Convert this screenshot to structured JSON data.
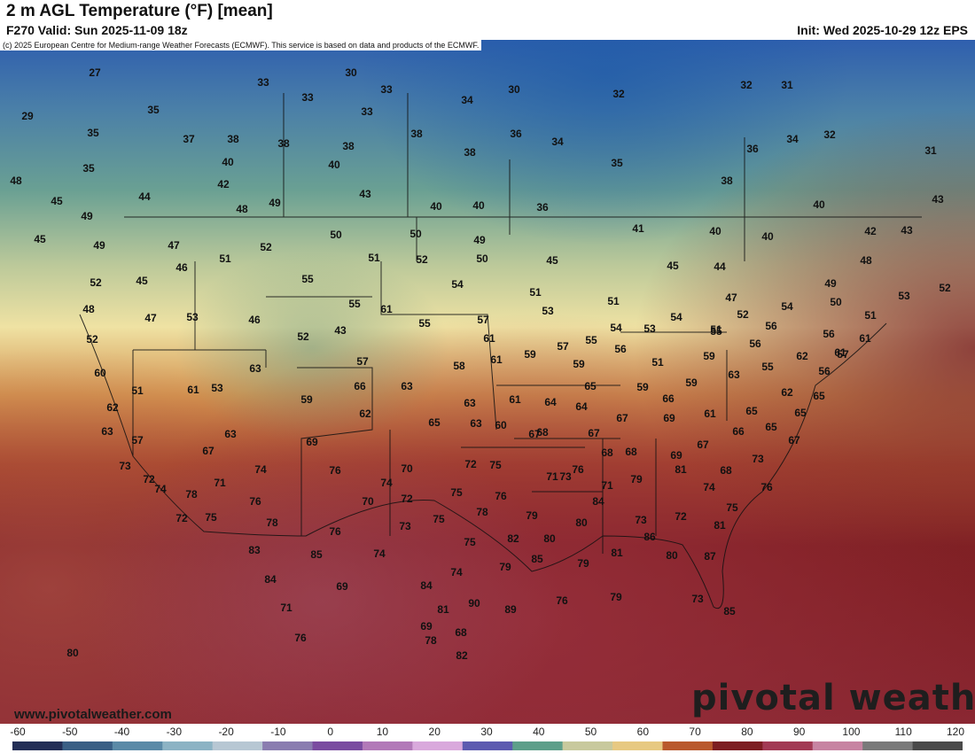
{
  "header": {
    "title": "2 m AGL Temperature (°F) [mean]",
    "valid": "F270 Valid: Sun 2025-11-09 18z",
    "init": "Init: Wed 2025-10-29 12z EPS"
  },
  "copyright": "(c) 2025 European Centre for Medium-range Weather Forecasts (ECMWF). This service is based on data and products of the ECMWF.",
  "footer": {
    "website": "www.pivotalweather.com",
    "brand": "pivotal weather"
  },
  "colors": {
    "cold": "#2f5fae",
    "cool": "#5e9f8a",
    "mild": "#f1e6a8",
    "warm": "#b9592d",
    "hot": "#7d1e22",
    "ocean_warm": "#8d2b34"
  },
  "legend": {
    "ticks": [
      "-60",
      "-50",
      "-40",
      "-30",
      "-20",
      "-10",
      "0",
      "10",
      "20",
      "30",
      "40",
      "50",
      "60",
      "70",
      "80",
      "90",
      "100",
      "110",
      "120"
    ],
    "colors": [
      "#232e56",
      "#3a5f85",
      "#5b8aa7",
      "#8cb3c4",
      "#b7c7d3",
      "#8a7db0",
      "#7a4ca0",
      "#b279b8",
      "#d9a9dc",
      "#5d5bb0",
      "#5e9f8a",
      "#c8c99d",
      "#e7c982",
      "#b9592d",
      "#7d1e22",
      "#a23a54",
      "#c784a2",
      "#7a7a7a",
      "#4a4a4a"
    ]
  },
  "labels": [
    "27",
    "30",
    "33",
    "33",
    "33",
    "30",
    "32",
    "32",
    "31",
    "29",
    "35",
    "34",
    "33",
    "35",
    "37",
    "38",
    "38",
    "38",
    "38",
    "36",
    "34",
    "36",
    "34",
    "32",
    "31",
    "40",
    "40",
    "38",
    "35",
    "35",
    "38",
    "48",
    "42",
    "43",
    "44",
    "45",
    "40",
    "40",
    "36",
    "40",
    "43",
    "49",
    "48",
    "49",
    "47",
    "41",
    "40",
    "40",
    "42",
    "43",
    "45",
    "50",
    "50",
    "49",
    "49",
    "52",
    "51",
    "52",
    "50",
    "45",
    "45",
    "44",
    "48",
    "49",
    "52",
    "51",
    "45",
    "46",
    "55",
    "54",
    "51",
    "51",
    "47",
    "54",
    "50",
    "53",
    "52",
    "48",
    "47",
    "46",
    "53",
    "55",
    "61",
    "57",
    "53",
    "54",
    "53",
    "54",
    "51",
    "52",
    "56",
    "56",
    "51",
    "52",
    "52",
    "43",
    "55",
    "61",
    "59",
    "57",
    "55",
    "56",
    "51",
    "55",
    "56",
    "55",
    "62",
    "59",
    "60",
    "57",
    "58",
    "61",
    "59",
    "63",
    "63",
    "61",
    "61",
    "57",
    "56",
    "53",
    "51",
    "61",
    "66",
    "63",
    "65",
    "59",
    "59",
    "62",
    "62",
    "59",
    "62",
    "63",
    "61",
    "64",
    "64",
    "66",
    "61",
    "65",
    "65",
    "65",
    "63",
    "60",
    "65",
    "63",
    "68",
    "67",
    "67",
    "69",
    "66",
    "65",
    "67",
    "57",
    "63",
    "68",
    "69",
    "67",
    "67",
    "69",
    "68",
    "67",
    "73",
    "73",
    "70",
    "72",
    "75",
    "73",
    "76",
    "79",
    "81",
    "68",
    "72",
    "74",
    "76",
    "71",
    "71",
    "74",
    "72",
    "75",
    "76",
    "74",
    "78",
    "71",
    "76",
    "70",
    "73",
    "75",
    "78",
    "79",
    "80",
    "84",
    "73",
    "72",
    "74",
    "75",
    "76",
    "75",
    "72",
    "78",
    "76",
    "74",
    "75",
    "82",
    "80",
    "86",
    "81",
    "83",
    "85",
    "85",
    "79",
    "79",
    "81",
    "80",
    "87",
    "74",
    "89",
    "76",
    "79",
    "73",
    "85",
    "84",
    "90",
    "81",
    "69",
    "69",
    "68",
    "84",
    "71",
    "82",
    "78",
    "80",
    "76"
  ],
  "locations": [
    "",
    ""
  ]
}
